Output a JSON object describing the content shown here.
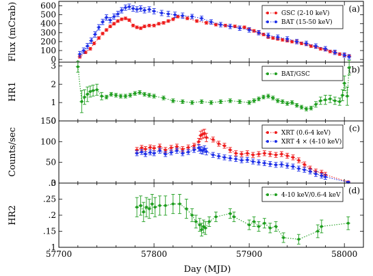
{
  "figure": {
    "xlabel": "Day (MJD)",
    "xlim": [
      57700,
      58020
    ],
    "xticks": [
      57700,
      57800,
      57900,
      58000
    ]
  },
  "colors": {
    "red": "#ee1c1c",
    "blue": "#1c2ee8",
    "green": "#1f9e1f"
  },
  "chart_data": [
    {
      "type": "line",
      "panel_label": "(a)",
      "ylabel": "Flux (mCrab)",
      "ylim": [
        -30,
        650
      ],
      "yticks": [
        0,
        100,
        200,
        300,
        400,
        500,
        600
      ],
      "legend_position": "top-right",
      "series": [
        {
          "name": "GSC (2-10 keV)",
          "color": "red",
          "x": [
            57722,
            57728,
            57733,
            57737,
            57742,
            57746,
            57750,
            57754,
            57758,
            57762,
            57766,
            57770,
            57774,
            57778,
            57782,
            57786,
            57790,
            57795,
            57800,
            57805,
            57810,
            57815,
            57820,
            57825,
            57835,
            57845,
            57855,
            57865,
            57875,
            57885,
            57895,
            57900,
            57905,
            57910,
            57915,
            57920,
            57925,
            57930,
            57935,
            57940,
            57945,
            57950,
            57955,
            57960,
            57965,
            57970,
            57975,
            57980,
            57985,
            57990,
            57995,
            58000,
            58005
          ],
          "y": [
            30,
            80,
            120,
            180,
            240,
            290,
            330,
            370,
            400,
            430,
            450,
            460,
            440,
            380,
            360,
            350,
            370,
            380,
            380,
            400,
            410,
            430,
            450,
            480,
            460,
            430,
            410,
            390,
            380,
            370,
            360,
            340,
            320,
            300,
            280,
            250,
            240,
            230,
            220,
            210,
            200,
            200,
            180,
            170,
            150,
            140,
            120,
            110,
            90,
            80,
            60,
            50,
            40
          ],
          "yerr": [
            15,
            15,
            15,
            15,
            15,
            15,
            15,
            15,
            15,
            15,
            15,
            15,
            15,
            15,
            15,
            15,
            15,
            15,
            15,
            15,
            15,
            15,
            15,
            15,
            15,
            15,
            15,
            15,
            15,
            15,
            15,
            15,
            15,
            15,
            15,
            15,
            15,
            15,
            15,
            15,
            15,
            15,
            15,
            15,
            15,
            15,
            15,
            15,
            15,
            15,
            15,
            15,
            15
          ]
        },
        {
          "name": "BAT (15-50 keV)",
          "color": "blue",
          "x": [
            57722,
            57726,
            57730,
            57734,
            57738,
            57742,
            57746,
            57750,
            57754,
            57758,
            57762,
            57766,
            57770,
            57774,
            57778,
            57782,
            57786,
            57790,
            57795,
            57800,
            57808,
            57815,
            57822,
            57830,
            57840,
            57850,
            57860,
            57870,
            57880,
            57890,
            57900,
            57910,
            57920,
            57930,
            57940,
            57950,
            57960,
            57970,
            57980,
            57990,
            58000,
            58005
          ],
          "y": [
            60,
            100,
            150,
            210,
            280,
            360,
            420,
            470,
            440,
            480,
            510,
            550,
            580,
            590,
            570,
            560,
            570,
            550,
            560,
            540,
            520,
            510,
            500,
            490,
            480,
            460,
            420,
            390,
            370,
            350,
            330,
            300,
            270,
            250,
            230,
            200,
            180,
            150,
            120,
            80,
            50,
            30
          ],
          "yerr": [
            30,
            30,
            30,
            30,
            30,
            30,
            30,
            30,
            30,
            30,
            30,
            30,
            30,
            30,
            30,
            30,
            30,
            30,
            30,
            30,
            30,
            30,
            30,
            30,
            25,
            25,
            25,
            25,
            25,
            25,
            25,
            25,
            25,
            25,
            25,
            25,
            25,
            25,
            25,
            25,
            25,
            25
          ]
        }
      ]
    },
    {
      "type": "line",
      "panel_label": "(b)",
      "ylabel": "HR1",
      "ylim": [
        0,
        3.2
      ],
      "yticks": [
        0,
        1,
        2,
        3
      ],
      "legend_position": "top-right",
      "series": [
        {
          "name": "BAT/GSC",
          "color": "green",
          "x": [
            57720,
            57724,
            57727,
            57730,
            57733,
            57736,
            57740,
            57745,
            57750,
            57755,
            57760,
            57765,
            57770,
            57775,
            57780,
            57785,
            57790,
            57795,
            57800,
            57810,
            57820,
            57830,
            57840,
            57850,
            57860,
            57870,
            57880,
            57890,
            57900,
            57905,
            57910,
            57915,
            57920,
            57925,
            57930,
            57935,
            57940,
            57945,
            57950,
            57955,
            57960,
            57965,
            57970,
            57975,
            57980,
            57985,
            57990,
            57995,
            57998,
            58000,
            58003,
            58005
          ],
          "y": [
            2.95,
            1.05,
            1.3,
            1.45,
            1.6,
            1.65,
            1.7,
            1.35,
            1.3,
            1.45,
            1.4,
            1.35,
            1.35,
            1.4,
            1.5,
            1.55,
            1.45,
            1.4,
            1.35,
            1.25,
            1.1,
            1.05,
            1.0,
            1.05,
            1.0,
            1.05,
            1.1,
            1.05,
            1.0,
            1.1,
            1.2,
            1.3,
            1.35,
            1.25,
            1.1,
            1.05,
            0.95,
            1.0,
            0.85,
            0.75,
            0.65,
            0.7,
            0.9,
            1.1,
            1.15,
            1.2,
            1.1,
            1.05,
            1.4,
            2.05,
            1.35,
            2.9
          ],
          "yerr": [
            0.3,
            0.6,
            0.4,
            0.4,
            0.3,
            0.3,
            0.3,
            0.2,
            0.1,
            0.1,
            0.1,
            0.1,
            0.1,
            0.1,
            0.1,
            0.1,
            0.1,
            0.1,
            0.1,
            0.1,
            0.1,
            0.1,
            0.1,
            0.1,
            0.1,
            0.1,
            0.1,
            0.1,
            0.1,
            0.1,
            0.1,
            0.1,
            0.1,
            0.1,
            0.1,
            0.1,
            0.1,
            0.1,
            0.1,
            0.1,
            0.1,
            0.1,
            0.15,
            0.2,
            0.25,
            0.2,
            0.2,
            0.2,
            0.3,
            0.4,
            0.5,
            0.4
          ]
        }
      ]
    },
    {
      "type": "line",
      "panel_label": "(c)",
      "ylabel": "Counts/sec",
      "ylim": [
        0,
        150
      ],
      "yticks": [
        0,
        50,
        100,
        150
      ],
      "legend_position": "top-right",
      "series": [
        {
          "name": "XRT (0.6-4 keV)",
          "color": "red",
          "x": [
            57782,
            57787,
            57791,
            57796,
            57800,
            57806,
            57812,
            57818,
            57824,
            57830,
            57836,
            57842,
            57847,
            57849,
            57851,
            57853,
            57855,
            57862,
            57868,
            57874,
            57880,
            57886,
            57892,
            57898,
            57904,
            57910,
            57916,
            57922,
            57928,
            57934,
            57940,
            57946,
            57952,
            57958,
            57964,
            57970,
            57976,
            57980,
            58004
          ],
          "y": [
            80,
            85,
            82,
            86,
            84,
            88,
            80,
            85,
            88,
            82,
            86,
            90,
            100,
            115,
            118,
            120,
            110,
            105,
            95,
            90,
            80,
            72,
            70,
            72,
            68,
            70,
            72,
            70,
            68,
            70,
            66,
            62,
            55,
            45,
            35,
            28,
            25,
            20,
            3
          ],
          "yerr": [
            6,
            6,
            6,
            6,
            6,
            6,
            6,
            6,
            6,
            6,
            6,
            6,
            8,
            10,
            10,
            10,
            10,
            6,
            6,
            6,
            6,
            6,
            6,
            6,
            6,
            6,
            6,
            6,
            6,
            6,
            6,
            6,
            6,
            6,
            6,
            6,
            6,
            6,
            2
          ]
        },
        {
          "name": "XRT 4 × (4-10 keV)",
          "color": "blue",
          "x": [
            57782,
            57787,
            57791,
            57796,
            57800,
            57806,
            57812,
            57818,
            57824,
            57830,
            57836,
            57842,
            57847,
            57849,
            57851,
            57853,
            57855,
            57862,
            57868,
            57874,
            57880,
            57886,
            57892,
            57898,
            57904,
            57910,
            57916,
            57922,
            57928,
            57934,
            57940,
            57946,
            57952,
            57958,
            57964,
            57970,
            57976,
            57980,
            58004
          ],
          "y": [
            72,
            75,
            70,
            74,
            72,
            78,
            70,
            74,
            78,
            72,
            75,
            80,
            85,
            80,
            78,
            82,
            76,
            68,
            65,
            62,
            60,
            58,
            55,
            56,
            52,
            50,
            48,
            46,
            44,
            45,
            42,
            40,
            35,
            32,
            28,
            22,
            18,
            15,
            2
          ],
          "yerr": [
            6,
            6,
            6,
            6,
            6,
            6,
            6,
            6,
            6,
            6,
            6,
            6,
            8,
            8,
            8,
            8,
            8,
            6,
            6,
            6,
            6,
            6,
            6,
            6,
            6,
            6,
            6,
            6,
            6,
            6,
            6,
            6,
            6,
            6,
            6,
            6,
            6,
            6,
            2
          ]
        }
      ]
    },
    {
      "type": "line",
      "panel_label": "(d)",
      "ylabel": "HR2",
      "ylim": [
        0.1,
        0.3
      ],
      "yticks": [
        0.1,
        0.15,
        0.2,
        0.25,
        0.3
      ],
      "legend_position": "top-right",
      "series": [
        {
          "name": "4-10 keV/0.6-4 keV",
          "color": "green",
          "x": [
            57782,
            57786,
            57789,
            57792,
            57795,
            57798,
            57801,
            57806,
            57812,
            57820,
            57827,
            57834,
            57840,
            57844,
            57848,
            57850,
            57852,
            57854,
            57858,
            57865,
            57880,
            57884,
            57900,
            57905,
            57910,
            57916,
            57922,
            57928,
            57936,
            57952,
            57972,
            57976,
            58004
          ],
          "y": [
            0.225,
            0.23,
            0.21,
            0.225,
            0.22,
            0.235,
            0.225,
            0.23,
            0.23,
            0.235,
            0.235,
            0.22,
            0.2,
            0.18,
            0.17,
            0.155,
            0.165,
            0.16,
            0.18,
            0.195,
            0.205,
            0.195,
            0.17,
            0.18,
            0.165,
            0.175,
            0.16,
            0.165,
            0.13,
            0.125,
            0.15,
            0.165,
            0.175
          ],
          "yerr": [
            0.03,
            0.03,
            0.03,
            0.03,
            0.03,
            0.03,
            0.03,
            0.03,
            0.03,
            0.03,
            0.03,
            0.03,
            0.02,
            0.02,
            0.02,
            0.02,
            0.02,
            0.02,
            0.015,
            0.015,
            0.015,
            0.015,
            0.015,
            0.015,
            0.015,
            0.015,
            0.015,
            0.015,
            0.015,
            0.015,
            0.02,
            0.02,
            0.02
          ]
        }
      ]
    }
  ]
}
